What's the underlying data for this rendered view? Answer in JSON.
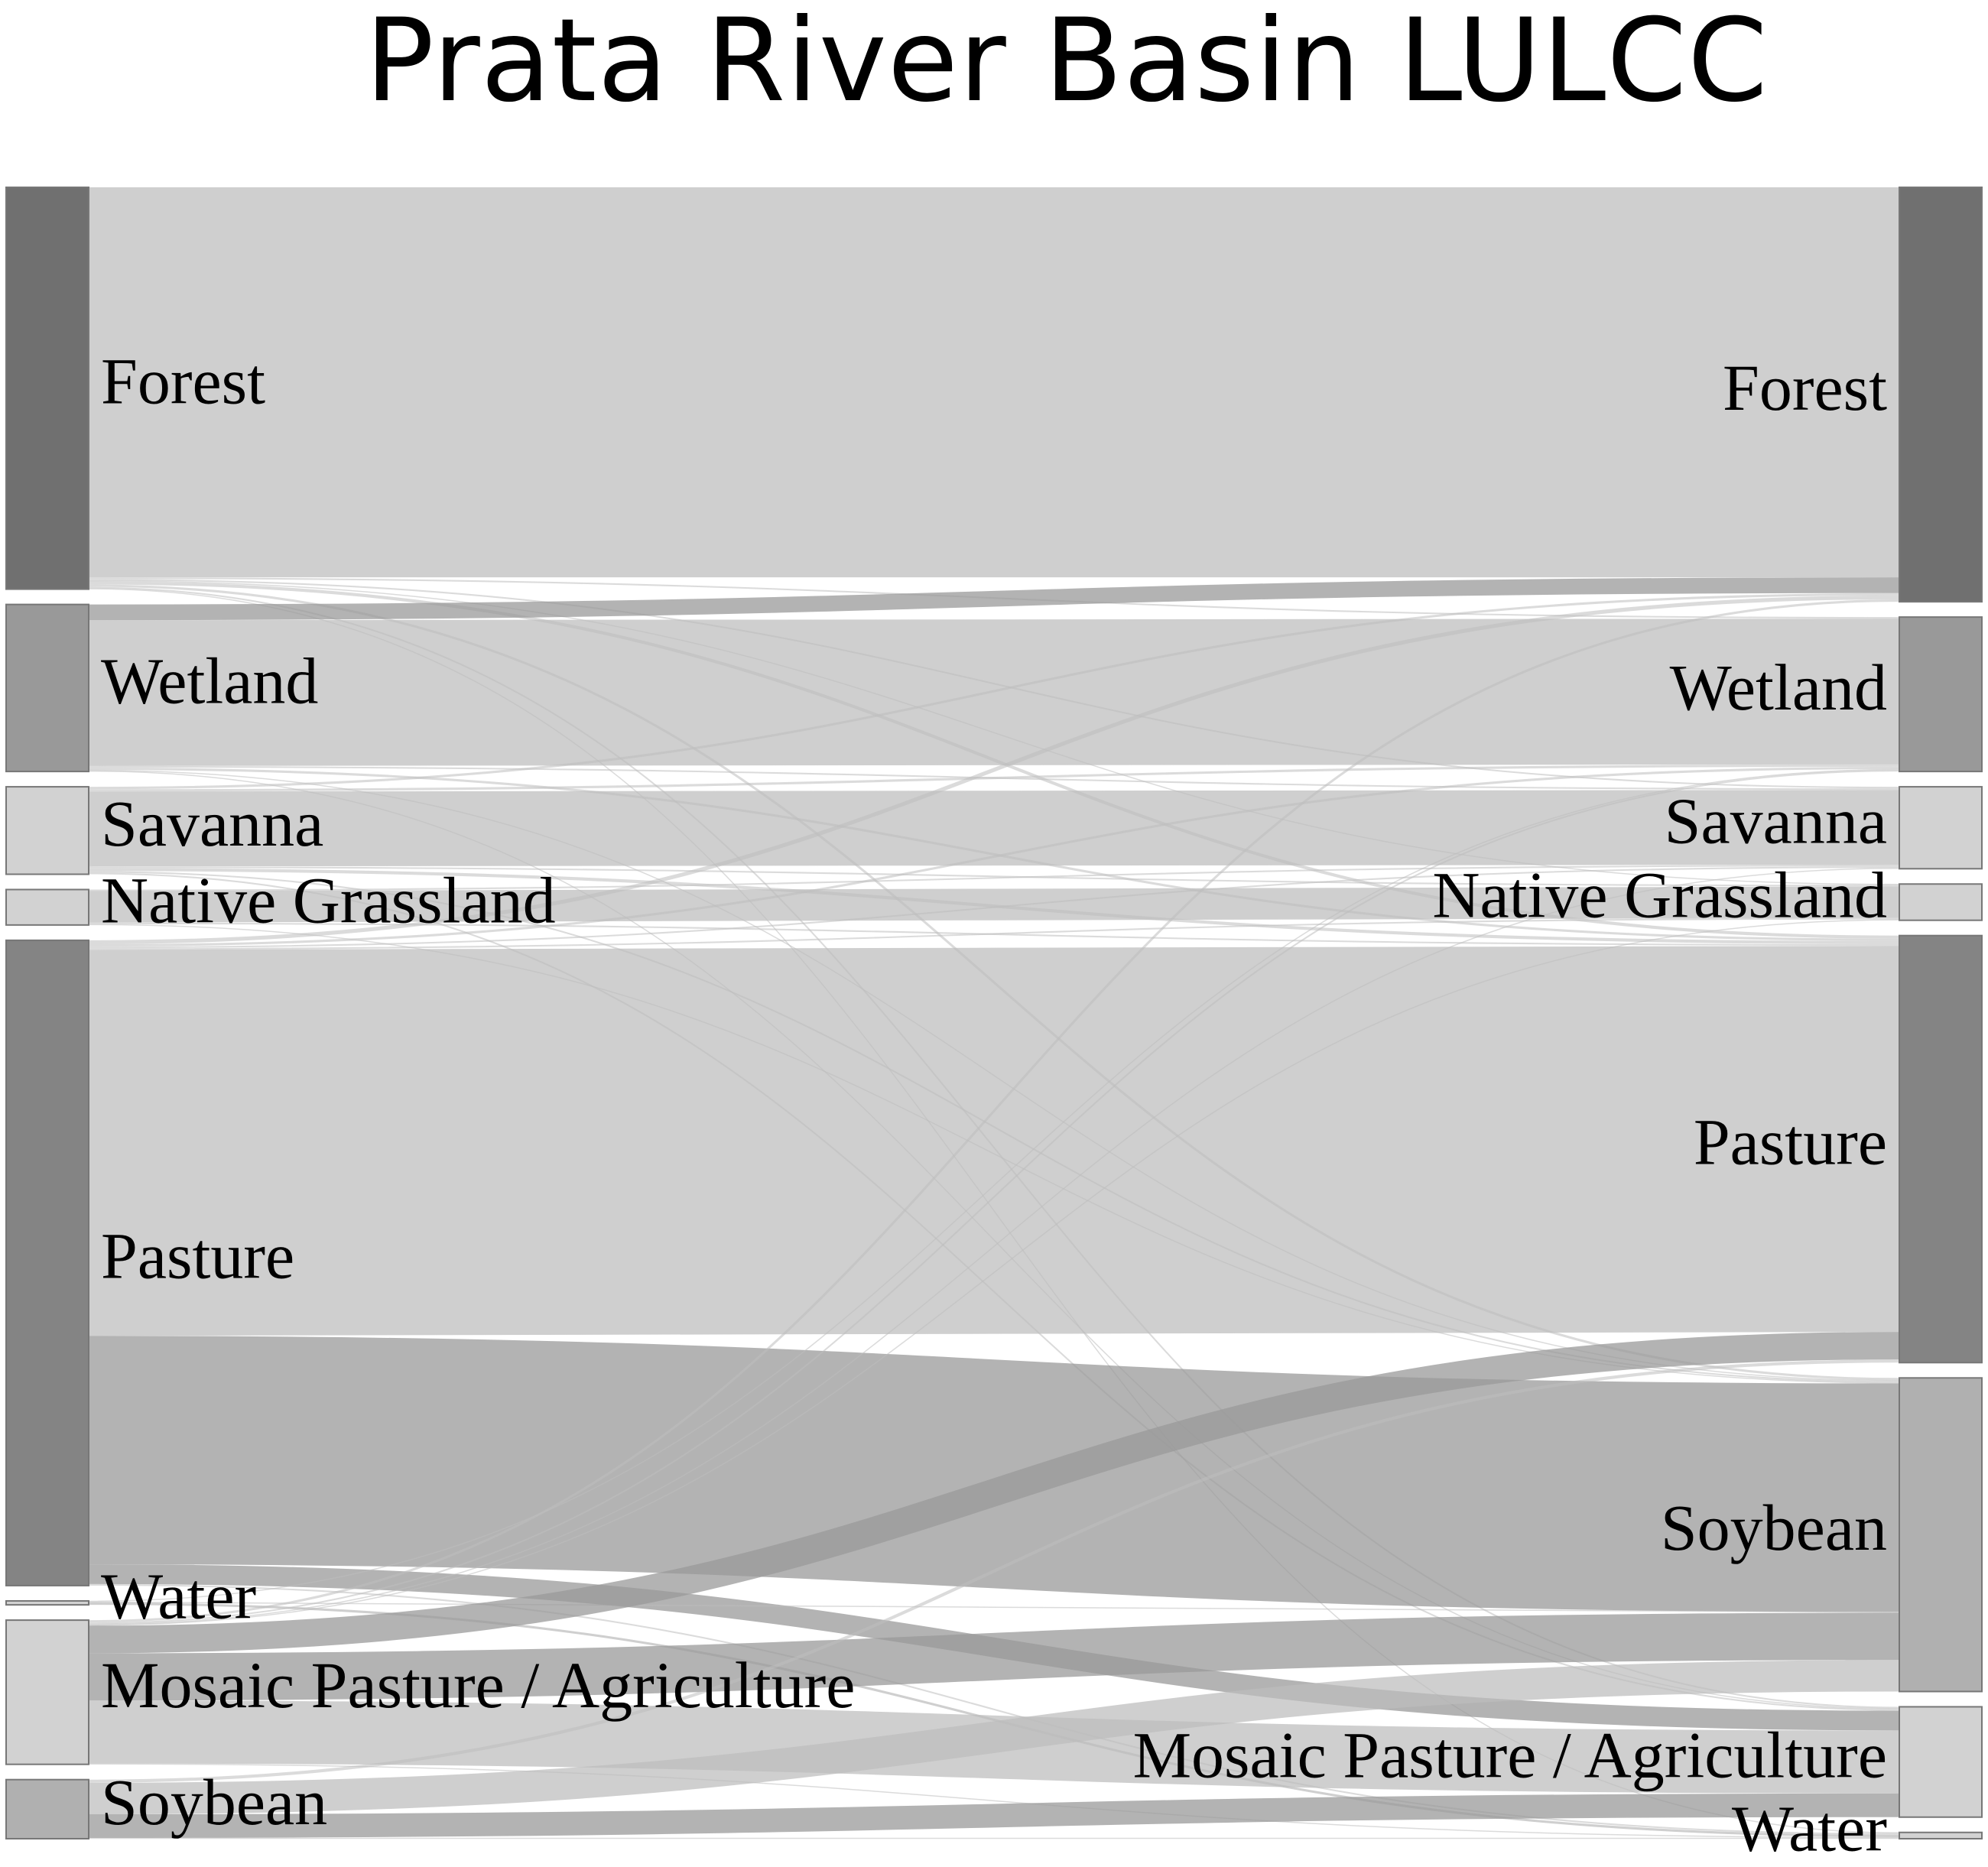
{
  "title": "Prata River Basin LULCC",
  "colors": {
    "flow": "#bdbdbd",
    "flow_highlight": "#9a9a9a",
    "node_stroke": "#777777"
  },
  "sources": [
    {
      "id": "forest",
      "label": "Forest",
      "fill": "#707070"
    },
    {
      "id": "wetland",
      "label": "Wetland",
      "fill": "#999999"
    },
    {
      "id": "savanna",
      "label": "Savanna",
      "fill": "#d2d2d2"
    },
    {
      "id": "grassland",
      "label": "Native Grassland",
      "fill": "#d2d2d2"
    },
    {
      "id": "pasture",
      "label": "Pasture",
      "fill": "#848484"
    },
    {
      "id": "water",
      "label": "Water",
      "fill": "#d2d2d2"
    },
    {
      "id": "mosaic",
      "label": "Mosaic Pasture / Agriculture",
      "fill": "#d2d2d2"
    },
    {
      "id": "soybean",
      "label": "Soybean",
      "fill": "#b0b0b0"
    }
  ],
  "targets": [
    {
      "id": "forest",
      "label": "Forest",
      "fill": "#707070"
    },
    {
      "id": "wetland",
      "label": "Wetland",
      "fill": "#999999"
    },
    {
      "id": "savanna",
      "label": "Savanna",
      "fill": "#d2d2d2"
    },
    {
      "id": "grassland",
      "label": "Native Grassland",
      "fill": "#d2d2d2"
    },
    {
      "id": "pasture",
      "label": "Pasture",
      "fill": "#848484"
    },
    {
      "id": "soybean",
      "label": "Soybean",
      "fill": "#b0b0b0"
    },
    {
      "id": "mosaic",
      "label": "Mosaic Pasture / Agriculture",
      "fill": "#d2d2d2"
    },
    {
      "id": "water",
      "label": "Water",
      "fill": "#d2d2d2"
    }
  ],
  "flows": [
    {
      "from": "forest",
      "to": "forest",
      "value": 495
    },
    {
      "from": "forest",
      "to": "wetland",
      "value": 2
    },
    {
      "from": "forest",
      "to": "savanna",
      "value": 2
    },
    {
      "from": "forest",
      "to": "grassland",
      "value": 1
    },
    {
      "from": "forest",
      "to": "pasture",
      "value": 4
    },
    {
      "from": "forest",
      "to": "soybean",
      "value": 3
    },
    {
      "from": "forest",
      "to": "mosaic",
      "value": 2
    },
    {
      "from": "forest",
      "to": "water",
      "value": 1
    },
    {
      "from": "wetland",
      "to": "forest",
      "value": 20
    },
    {
      "from": "wetland",
      "to": "wetland",
      "value": 185
    },
    {
      "from": "wetland",
      "to": "savanna",
      "value": 2
    },
    {
      "from": "wetland",
      "to": "pasture",
      "value": 3
    },
    {
      "from": "wetland",
      "to": "soybean",
      "value": 1
    },
    {
      "from": "wetland",
      "to": "mosaic",
      "value": 1
    },
    {
      "from": "savanna",
      "to": "forest",
      "value": 3
    },
    {
      "from": "savanna",
      "to": "wetland",
      "value": 3
    },
    {
      "from": "savanna",
      "to": "savanna",
      "value": 95
    },
    {
      "from": "savanna",
      "to": "grassland",
      "value": 2
    },
    {
      "from": "savanna",
      "to": "pasture",
      "value": 4
    },
    {
      "from": "savanna",
      "to": "soybean",
      "value": 2
    },
    {
      "from": "savanna",
      "to": "mosaic",
      "value": 2
    },
    {
      "from": "grassland",
      "to": "savanna",
      "value": 2
    },
    {
      "from": "grassland",
      "to": "grassland",
      "value": 40
    },
    {
      "from": "grassland",
      "to": "pasture",
      "value": 2
    },
    {
      "from": "grassland",
      "to": "soybean",
      "value": 1
    },
    {
      "from": "pasture",
      "to": "forest",
      "value": 5
    },
    {
      "from": "pasture",
      "to": "wetland",
      "value": 3
    },
    {
      "from": "pasture",
      "to": "savanna",
      "value": 2
    },
    {
      "from": "pasture",
      "to": "grassland",
      "value": 2
    },
    {
      "from": "pasture",
      "to": "pasture",
      "value": 490
    },
    {
      "from": "pasture",
      "to": "soybean",
      "value": 290
    },
    {
      "from": "pasture",
      "to": "mosaic",
      "value": 25
    },
    {
      "from": "pasture",
      "to": "water",
      "value": 2
    },
    {
      "from": "water",
      "to": "wetland",
      "value": 1
    },
    {
      "from": "water",
      "to": "water",
      "value": 3
    },
    {
      "from": "water",
      "to": "soybean",
      "value": 1
    },
    {
      "from": "mosaic",
      "to": "forest",
      "value": 3
    },
    {
      "from": "mosaic",
      "to": "wetland",
      "value": 2
    },
    {
      "from": "mosaic",
      "to": "savanna",
      "value": 1
    },
    {
      "from": "mosaic",
      "to": "grassland",
      "value": 1
    },
    {
      "from": "mosaic",
      "to": "pasture",
      "value": 35
    },
    {
      "from": "mosaic",
      "to": "soybean",
      "value": 60
    },
    {
      "from": "mosaic",
      "to": "mosaic",
      "value": 80
    },
    {
      "from": "mosaic",
      "to": "water",
      "value": 1
    },
    {
      "from": "soybean",
      "to": "pasture",
      "value": 4
    },
    {
      "from": "soybean",
      "to": "soybean",
      "value": 40
    },
    {
      "from": "soybean",
      "to": "mosaic",
      "value": 30
    },
    {
      "from": "soybean",
      "to": "water",
      "value": 1
    }
  ]
}
